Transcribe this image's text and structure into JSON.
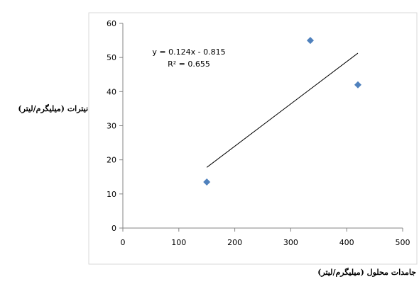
{
  "chart_data": {
    "type": "scatter",
    "title": "",
    "xlabel": "جامدات محلول (میلیگرم/لیتر)",
    "ylabel": "نیترات (میلیگرم/لیتر)",
    "xlim": [
      0,
      500
    ],
    "ylim": [
      0,
      60
    ],
    "x_ticks": [
      0,
      100,
      200,
      300,
      400,
      500
    ],
    "y_ticks": [
      0,
      10,
      20,
      30,
      40,
      50,
      60
    ],
    "grid": false,
    "legend": "none",
    "marker": "diamond",
    "marker_color": "#4F81BD",
    "series": [
      {
        "points": [
          {
            "x": 150,
            "y": 13.5
          },
          {
            "x": 335,
            "y": 55
          },
          {
            "x": 420,
            "y": 42
          }
        ]
      }
    ],
    "trendline": {
      "slope": 0.124,
      "intercept": -0.815,
      "x_range": [
        150,
        420
      ],
      "color": "#000000",
      "equation_text": "y = 0.124x - 0.815",
      "r2_text": "R² = 0.655"
    }
  }
}
